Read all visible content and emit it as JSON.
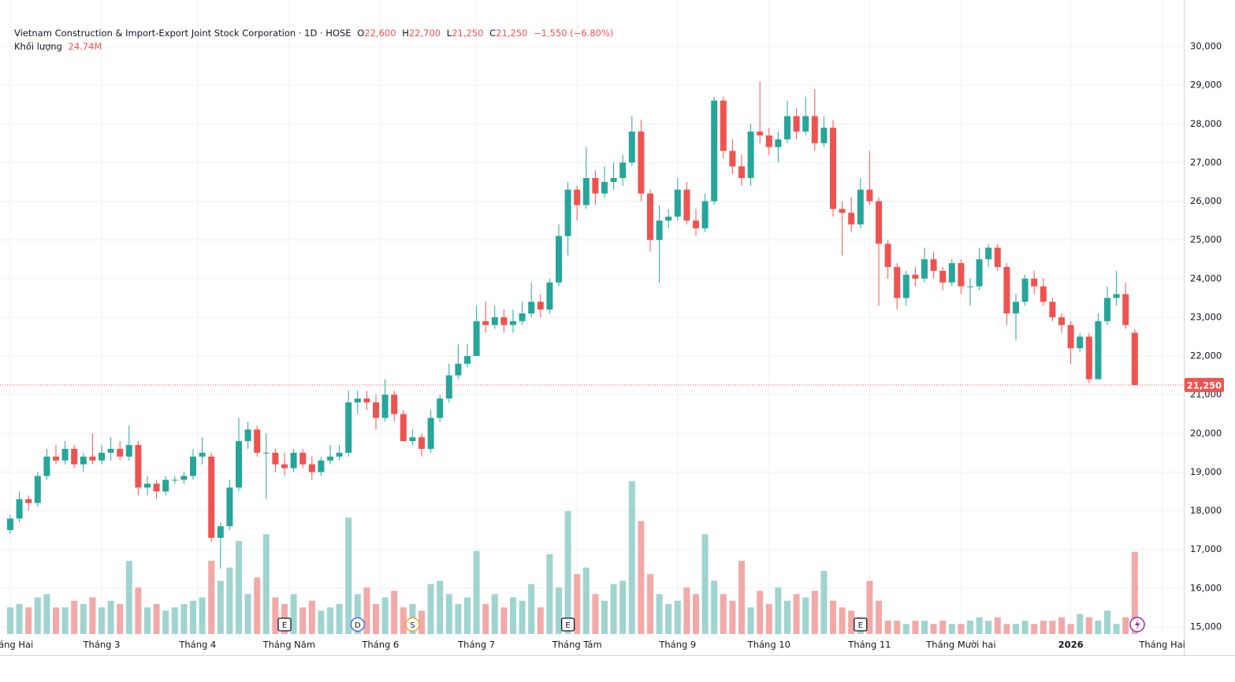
{
  "chart_data": {
    "type": "candlestick",
    "header": {
      "title": "Vietnam Construction & Import-Export Joint Stock Corporation · 1D · HOSE",
      "o_key": "O",
      "h_key": "H",
      "l_key": "L",
      "c_key": "C",
      "open": {
        "value": 22600,
        "label": "22,600"
      },
      "high": {
        "value": 22700,
        "label": "22,700"
      },
      "low": {
        "value": 21250,
        "label": "21,250"
      },
      "close": {
        "value": 21250,
        "label": "21,250"
      },
      "change": {
        "value": -1550,
        "label": "−1,550"
      },
      "change_pct": {
        "value": -6.8,
        "label": "(−6.80%)"
      },
      "volume_title": "Khối lượng",
      "volume": {
        "value": 24.74,
        "label": "24.74M"
      }
    },
    "last_price": {
      "value": 21250,
      "label": "21,250"
    },
    "up_color": "#26a69a",
    "down_color": "#ef5350",
    "volume_up_color": "#9fd4cf",
    "volume_down_color": "#f2a9a7",
    "grid": true,
    "ylim": [
      14816,
      30631
    ],
    "yticks": [
      {
        "value": 15000,
        "label": "15,000"
      },
      {
        "value": 16000,
        "label": "16,000"
      },
      {
        "value": 17000,
        "label": "17,000"
      },
      {
        "value": 18000,
        "label": "18,000"
      },
      {
        "value": 19000,
        "label": "19,000"
      },
      {
        "value": 20000,
        "label": "20,000"
      },
      {
        "value": 21000,
        "label": "21,000"
      },
      {
        "value": 22000,
        "label": "22,000"
      },
      {
        "value": 23000,
        "label": "23,000"
      },
      {
        "value": 24000,
        "label": "24,000"
      },
      {
        "value": 25000,
        "label": "25,000"
      },
      {
        "value": 26000,
        "label": "26,000"
      },
      {
        "value": 27000,
        "label": "27,000"
      },
      {
        "value": 28000,
        "label": "28,000"
      },
      {
        "value": 29000,
        "label": "29,000"
      },
      {
        "value": 30000,
        "label": "30,000"
      }
    ],
    "xticks": [
      {
        "value": 0,
        "label": "Tháng Hai"
      },
      {
        "value": 10,
        "label": "Tháng 3"
      },
      {
        "value": 20.5,
        "label": "Tháng 4"
      },
      {
        "value": 30.5,
        "label": "Tháng Năm"
      },
      {
        "value": 40.5,
        "label": "Tháng 6"
      },
      {
        "value": 51,
        "label": "Tháng 7"
      },
      {
        "value": 62,
        "label": "Tháng Tám"
      },
      {
        "value": 73,
        "label": "Tháng 9"
      },
      {
        "value": 83,
        "label": "Tháng 10"
      },
      {
        "value": 94,
        "label": "Tháng 11"
      },
      {
        "value": 104,
        "label": "Tháng Mười hai"
      },
      {
        "value": 116,
        "label": "2026",
        "bold": true
      },
      {
        "value": 126,
        "label": "Tháng Hai"
      }
    ],
    "events": [
      {
        "x": 30,
        "label": "E",
        "color": "#131722"
      },
      {
        "x": 38,
        "label": "D",
        "color": "#2962ff"
      },
      {
        "x": 44,
        "label": "S",
        "color": "#f59d0b"
      },
      {
        "x": 61,
        "label": "E",
        "color": "#131722"
      },
      {
        "x": 93,
        "label": "E",
        "color": "#131722"
      }
    ],
    "open": [
      17500,
      17800,
      18300,
      18200,
      18900,
      19400,
      19300,
      19600,
      19200,
      19400,
      19300,
      19500,
      19600,
      19400,
      19700,
      18600,
      18700,
      18500,
      18800,
      18800,
      18900,
      19400,
      19400,
      17300,
      17600,
      18600,
      19800,
      20100,
      19500,
      19500,
      19200,
      19100,
      19500,
      19200,
      19000,
      19300,
      19400,
      19500,
      20800,
      20900,
      20800,
      20400,
      21000,
      20500,
      19800,
      19900,
      19600,
      20400,
      20900,
      21500,
      21800,
      22000,
      22900,
      22800,
      23000,
      22800,
      22900,
      23100,
      23400,
      23200,
      23900,
      25100,
      26300,
      25900,
      26600,
      26200,
      26500,
      26600,
      27000,
      27800,
      26200,
      25000,
      25500,
      25600,
      26300,
      25500,
      25300,
      26000,
      28600,
      27300,
      26900,
      26600,
      27800,
      27700,
      27400,
      27600,
      28200,
      27800,
      28200,
      27500,
      27900,
      25800,
      25700,
      25400,
      26300,
      26000,
      24900,
      24300,
      23500,
      24100,
      24000,
      24500,
      24200,
      23900,
      24400,
      23800,
      23800,
      24500,
      24800,
      24300,
      23100,
      23400,
      24000,
      23800,
      23400,
      23000,
      22800,
      22200,
      22500,
      21400,
      22900,
      23500,
      23600,
      22600
    ],
    "high": [
      17900,
      18500,
      18400,
      19000,
      19600,
      19700,
      19800,
      19700,
      19500,
      20000,
      19700,
      19900,
      19800,
      20200,
      19800,
      18900,
      18800,
      18900,
      18900,
      19000,
      19600,
      19900,
      19500,
      17700,
      18800,
      20400,
      20300,
      20200,
      20000,
      19600,
      19500,
      19600,
      19600,
      19400,
      19400,
      19700,
      19700,
      21100,
      21100,
      21100,
      21000,
      21400,
      21100,
      20600,
      20100,
      20000,
      20600,
      21000,
      21800,
      22300,
      22300,
      23300,
      23400,
      23300,
      23200,
      23200,
      23400,
      23900,
      23600,
      24000,
      25400,
      26500,
      26400,
      27400,
      26800,
      26900,
      27000,
      27200,
      28200,
      28100,
      26300,
      25900,
      25800,
      26600,
      26500,
      25800,
      26200,
      28700,
      28700,
      27600,
      27200,
      28000,
      29100,
      27900,
      27800,
      28600,
      28400,
      28700,
      28900,
      28200,
      28100,
      26000,
      26100,
      26600,
      27300,
      26100,
      25000,
      24400,
      24200,
      24300,
      24800,
      24700,
      24300,
      24500,
      24500,
      24000,
      24800,
      24900,
      24900,
      24400,
      23600,
      24100,
      24200,
      24000,
      23500,
      23100,
      22900,
      22600,
      22600,
      23100,
      23800,
      24200,
      23900,
      22700
    ],
    "low": [
      17400,
      17700,
      18000,
      18100,
      18800,
      19200,
      19200,
      19100,
      19000,
      19200,
      19200,
      19300,
      19300,
      19300,
      18400,
      18400,
      18300,
      18400,
      18700,
      18700,
      18800,
      19200,
      17200,
      16500,
      17500,
      18500,
      19600,
      19400,
      18300,
      19000,
      18900,
      19000,
      19100,
      18800,
      18900,
      19200,
      19300,
      19400,
      20500,
      20600,
      20100,
      20300,
      20300,
      19800,
      19700,
      19400,
      19500,
      20300,
      20800,
      21400,
      21700,
      22000,
      22600,
      22700,
      22600,
      22600,
      22800,
      23000,
      23000,
      23100,
      23800,
      24600,
      25500,
      25800,
      25900,
      26100,
      26300,
      26400,
      26900,
      26000,
      24700,
      23900,
      25300,
      25500,
      25400,
      25100,
      25200,
      25900,
      27100,
      26700,
      26400,
      26400,
      27500,
      27200,
      27000,
      27500,
      27600,
      27700,
      27300,
      27400,
      25600,
      24600,
      25200,
      25300,
      25900,
      23300,
      24000,
      23200,
      23300,
      23800,
      23900,
      24000,
      23700,
      23800,
      23600,
      23300,
      23700,
      24300,
      24200,
      22800,
      22400,
      23300,
      23600,
      23300,
      22900,
      22600,
      21800,
      22100,
      21300,
      21400,
      22800,
      23300,
      22700,
      21250
    ],
    "close": [
      17800,
      18300,
      18200,
      18900,
      19400,
      19300,
      19600,
      19200,
      19400,
      19300,
      19500,
      19600,
      19400,
      19700,
      18600,
      18700,
      18500,
      18800,
      18800,
      18900,
      19400,
      19500,
      17300,
      17600,
      18600,
      19800,
      20100,
      19500,
      19500,
      19200,
      19100,
      19500,
      19200,
      19000,
      19300,
      19400,
      19500,
      20800,
      20900,
      20800,
      20400,
      21000,
      20500,
      19800,
      19900,
      19600,
      20400,
      20900,
      21500,
      21800,
      22000,
      22900,
      22800,
      23000,
      22800,
      22900,
      23100,
      23400,
      23200,
      23900,
      25100,
      26300,
      25900,
      26600,
      26200,
      26500,
      26600,
      27000,
      27800,
      26200,
      25000,
      25500,
      25600,
      26300,
      25500,
      25300,
      26000,
      28600,
      27300,
      26900,
      26600,
      27800,
      27700,
      27400,
      27600,
      28200,
      27800,
      28200,
      27500,
      27900,
      25800,
      25700,
      25400,
      26300,
      26000,
      24900,
      24300,
      23500,
      24100,
      24000,
      24500,
      24200,
      23900,
      24400,
      23800,
      23800,
      24500,
      24800,
      24300,
      23100,
      23400,
      24000,
      23800,
      23400,
      23000,
      22800,
      22200,
      22500,
      21400,
      22900,
      23500,
      23600,
      22800,
      21250
    ],
    "volume": [
      8,
      9,
      8,
      11,
      12,
      8,
      8,
      10,
      9,
      11,
      8,
      10,
      9,
      22,
      14,
      8,
      9,
      7,
      8,
      9,
      10,
      11,
      22,
      16,
      20,
      28,
      12,
      17,
      30,
      11,
      9,
      12,
      8,
      10,
      7,
      8,
      9,
      35,
      12,
      14,
      9,
      11,
      13,
      8,
      9,
      7,
      15,
      16,
      12,
      9,
      11,
      25,
      9,
      12,
      8,
      11,
      10,
      15,
      8,
      24,
      14,
      37,
      18,
      20,
      12,
      10,
      15,
      16,
      46,
      34,
      18,
      12,
      9,
      10,
      14,
      12,
      30,
      16,
      12,
      10,
      22,
      8,
      13,
      9,
      14,
      10,
      12,
      11,
      13,
      19,
      10,
      8,
      7,
      5,
      16,
      10,
      4,
      4,
      3,
      4,
      4,
      3,
      4,
      3,
      3,
      4,
      5,
      4,
      5,
      3,
      3,
      4,
      3,
      4,
      4,
      5,
      3,
      6,
      5,
      4,
      7,
      3,
      5,
      24.74
    ]
  }
}
